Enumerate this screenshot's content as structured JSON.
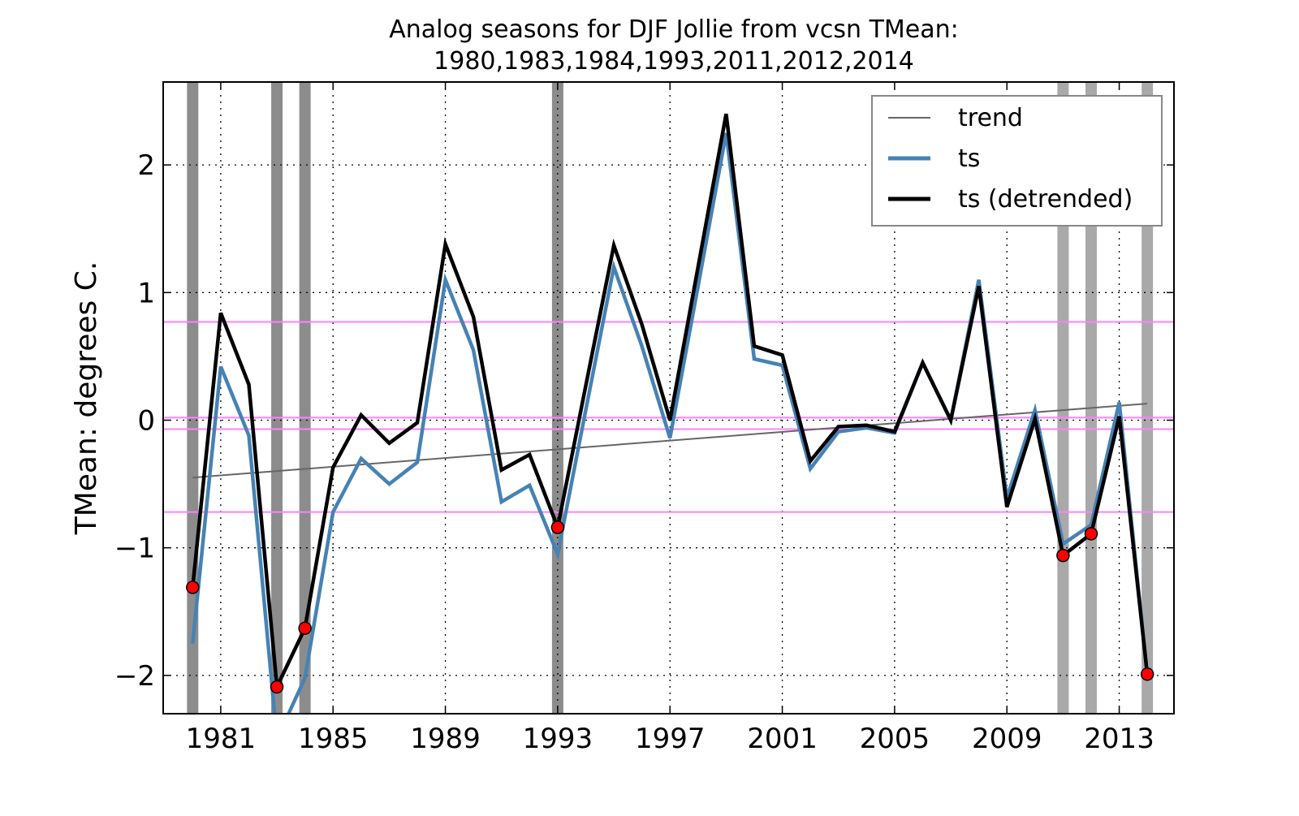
{
  "chart_data": {
    "type": "line",
    "title": "Analog seasons for DJF Jollie from vcsn TMean:",
    "subtitle": "1980,1983,1984,1993,2011,2012,2014",
    "xlabel": "",
    "ylabel": "TMean: degrees C.",
    "xlim": [
      1978.95,
      2014.95
    ],
    "ylim": [
      -2.3,
      2.65
    ],
    "x_ticks": [
      1981,
      1985,
      1989,
      1993,
      1997,
      2001,
      2005,
      2009,
      2013
    ],
    "x_tick_labels": [
      "1981",
      "1985",
      "1989",
      "1993",
      "1997",
      "2001",
      "2005",
      "2009",
      "2013"
    ],
    "y_ticks": [
      -2,
      -1,
      0,
      1,
      2
    ],
    "y_tick_labels": [
      "−2",
      "−1",
      "0",
      "1",
      "2"
    ],
    "grid": true,
    "legend_position": "top-right",
    "x": [
      1980,
      1981,
      1982,
      1983,
      1984,
      1985,
      1986,
      1987,
      1988,
      1989,
      1990,
      1991,
      1992,
      1993,
      1994,
      1995,
      1996,
      1997,
      1998,
      1999,
      2000,
      2001,
      2002,
      2003,
      2004,
      2005,
      2006,
      2007,
      2008,
      2009,
      2010,
      2011,
      2012,
      2013,
      2014
    ],
    "series": [
      {
        "name": "trend",
        "color": "#666666",
        "x": [
          1980,
          2014
        ],
        "values": [
          -0.45,
          0.13
        ]
      },
      {
        "name": "ts",
        "color": "#4682b4",
        "values": [
          -1.75,
          0.42,
          -0.12,
          -2.5,
          -2.02,
          -0.72,
          -0.3,
          -0.5,
          -0.33,
          1.1,
          0.55,
          -0.64,
          -0.51,
          -1.05,
          0.08,
          1.2,
          0.58,
          -0.14,
          1.05,
          2.25,
          0.48,
          0.43,
          -0.38,
          -0.09,
          -0.06,
          -0.1,
          0.45,
          0.0,
          1.1,
          -0.61,
          0.08,
          -0.97,
          -0.82,
          0.14,
          -2.0
        ]
      },
      {
        "name": "ts (detrended)",
        "color": "#000000",
        "values": [
          -1.31,
          0.84,
          0.28,
          -2.09,
          -1.63,
          -0.37,
          0.04,
          -0.18,
          -0.02,
          1.38,
          0.81,
          -0.39,
          -0.27,
          -0.84,
          0.27,
          1.37,
          0.75,
          0.0,
          1.2,
          2.4,
          0.58,
          0.51,
          -0.32,
          -0.05,
          -0.04,
          -0.09,
          0.45,
          0.0,
          1.05,
          -0.68,
          0.01,
          -1.06,
          -0.89,
          0.03,
          -1.99
        ]
      }
    ],
    "analog_years": [
      1980,
      1983,
      1984,
      1993,
      2011,
      2012,
      2014
    ],
    "analog_values": [
      -1.31,
      -2.09,
      -1.63,
      -0.84,
      -1.06,
      -0.89,
      -1.99
    ],
    "reference_lines": [
      0.77,
      0.02,
      -0.07,
      -0.72
    ],
    "colors": {
      "ts": "#4682b4",
      "detrended": "#000000",
      "trend": "#666666",
      "markers": "#ff0000",
      "reference_lines": "#ff80ff",
      "analog_bands": "#8c8c8c"
    }
  }
}
